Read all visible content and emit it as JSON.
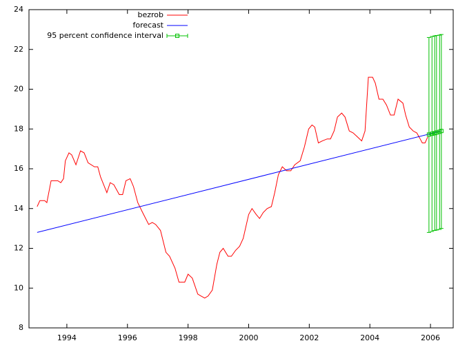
{
  "chart_data": {
    "type": "line",
    "series": [
      {
        "name": "bezrob",
        "color": "#ff0000",
        "x": [
          1993.02,
          1993.11,
          1993.27,
          1993.34,
          1993.48,
          1993.7,
          1993.8,
          1993.89,
          1993.95,
          1994.07,
          1994.16,
          1994.3,
          1994.45,
          1994.57,
          1994.7,
          1994.91,
          1995.02,
          1995.11,
          1995.32,
          1995.43,
          1995.55,
          1995.73,
          1995.84,
          1995.95,
          1996.09,
          1996.2,
          1996.34,
          1996.5,
          1996.7,
          1996.82,
          1996.93,
          1997.09,
          1997.27,
          1997.39,
          1997.57,
          1997.7,
          1997.89,
          1998.0,
          1998.14,
          1998.32,
          1998.43,
          1998.55,
          1998.66,
          1998.8,
          1998.95,
          1999.05,
          1999.16,
          1999.32,
          1999.43,
          1999.57,
          1999.7,
          1999.82,
          2000.0,
          2000.11,
          2000.25,
          2000.36,
          2000.48,
          2000.61,
          2000.75,
          2000.86,
          2000.98,
          2001.11,
          2001.25,
          2001.39,
          2001.52,
          2001.7,
          2001.84,
          2001.98,
          2002.09,
          2002.18,
          2002.3,
          2002.43,
          2002.59,
          2002.7,
          2002.82,
          2002.93,
          2003.07,
          2003.18,
          2003.32,
          2003.45,
          2003.59,
          2003.73,
          2003.84,
          2003.95,
          2004.09,
          2004.18,
          2004.3,
          2004.43,
          2004.55,
          2004.68,
          2004.8,
          2004.93,
          2005.09,
          2005.18,
          2005.3,
          2005.43,
          2005.55,
          2005.66,
          2005.73,
          2005.82,
          2005.91
        ],
        "values": [
          14.1,
          14.4,
          14.4,
          14.3,
          15.4,
          15.4,
          15.3,
          15.5,
          16.4,
          16.8,
          16.7,
          16.2,
          16.9,
          16.8,
          16.3,
          16.1,
          16.1,
          15.6,
          14.8,
          15.3,
          15.2,
          14.7,
          14.7,
          15.4,
          15.5,
          15.1,
          14.3,
          13.8,
          13.2,
          13.3,
          13.2,
          12.9,
          11.8,
          11.6,
          11.0,
          10.3,
          10.3,
          10.7,
          10.5,
          9.7,
          9.6,
          9.5,
          9.6,
          9.9,
          11.2,
          11.8,
          12.0,
          11.6,
          11.6,
          11.9,
          12.1,
          12.5,
          13.7,
          14.0,
          13.7,
          13.5,
          13.8,
          14.0,
          14.1,
          14.8,
          15.7,
          16.1,
          15.9,
          15.9,
          16.2,
          16.4,
          17.1,
          18.0,
          18.2,
          18.1,
          17.3,
          17.4,
          17.5,
          17.5,
          17.9,
          18.6,
          18.8,
          18.6,
          17.9,
          17.8,
          17.6,
          17.4,
          17.9,
          20.6,
          20.6,
          20.3,
          19.5,
          19.5,
          19.2,
          18.7,
          18.7,
          19.5,
          19.3,
          18.7,
          18.1,
          17.9,
          17.8,
          17.5,
          17.3,
          17.3,
          17.6
        ]
      },
      {
        "name": "forecast",
        "color": "#0000ff",
        "x": [
          1993.02,
          2006.36
        ],
        "values": [
          12.8,
          17.9
        ]
      },
      {
        "name": "95 percent confidence interval",
        "color": "#00c000",
        "x": [
          2005.95,
          2006.05,
          2006.14,
          2006.2,
          2006.3,
          2006.36
        ],
        "values": [
          17.72,
          17.76,
          17.79,
          17.82,
          17.86,
          17.9
        ],
        "low": [
          12.8,
          12.85,
          12.9,
          12.92,
          12.95,
          13.0
        ],
        "high": [
          22.6,
          22.65,
          22.68,
          22.7,
          22.72,
          22.75
        ]
      }
    ],
    "xlim": [
      1992.75,
      2006.75
    ],
    "xticks": [
      1994,
      1996,
      1998,
      2000,
      2002,
      2004,
      2006
    ],
    "ylim": [
      8,
      24
    ],
    "yticks": [
      8,
      10,
      12,
      14,
      16,
      18,
      20,
      22,
      24
    ],
    "grid": false
  }
}
